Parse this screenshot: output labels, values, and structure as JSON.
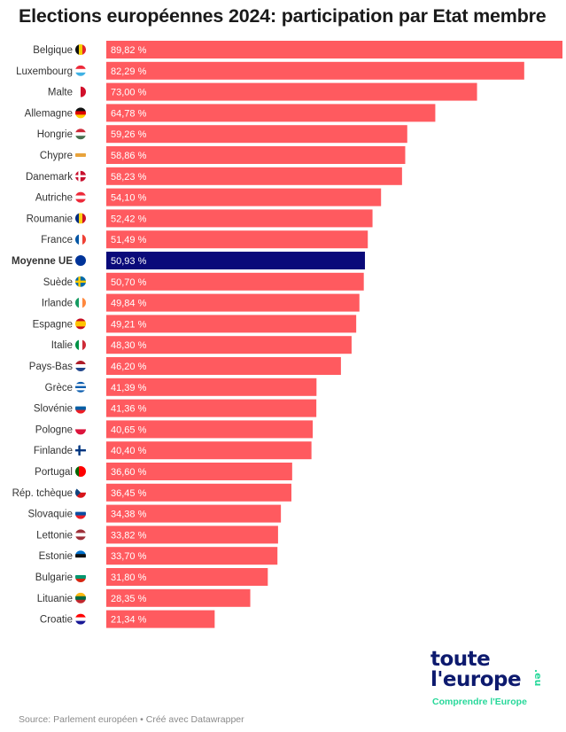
{
  "title": "Elections européennes 2024: participation par Etat membre",
  "source": "Source: Parlement européen • Créé avec Datawrapper",
  "logo": {
    "line1": "toute",
    "line2": "l'europe",
    "suffix": ".eu",
    "tagline": "Comprendre l'Europe"
  },
  "colors": {
    "bar": "#ff5a5f",
    "highlight": "#0a0a7a",
    "logo": "#0d1a6e",
    "logo_accent": "#27d89a"
  },
  "chart_data": {
    "type": "bar",
    "orientation": "horizontal",
    "title": "Elections européennes 2024: participation par Etat membre",
    "xlim": [
      0,
      89.82
    ],
    "grid": false,
    "highlight": "Moyenne UE",
    "categories": [
      "Belgique",
      "Luxembourg",
      "Malte",
      "Allemagne",
      "Hongrie",
      "Chypre",
      "Danemark",
      "Autriche",
      "Roumanie",
      "France",
      "Moyenne UE",
      "Suède",
      "Irlande",
      "Espagne",
      "Italie",
      "Pays-Bas",
      "Grèce",
      "Slovénie",
      "Pologne",
      "Finlande",
      "Portugal",
      "Rép. tchèque",
      "Slovaquie",
      "Lettonie",
      "Estonie",
      "Bulgarie",
      "Lituanie",
      "Croatie"
    ],
    "values": [
      89.82,
      82.29,
      73.0,
      64.78,
      59.26,
      58.86,
      58.23,
      54.1,
      52.42,
      51.49,
      50.93,
      50.7,
      49.84,
      49.21,
      48.3,
      46.2,
      41.39,
      41.36,
      40.65,
      40.4,
      36.6,
      36.45,
      34.38,
      33.82,
      33.7,
      31.8,
      28.35,
      21.34
    ],
    "labels": [
      "89,82 %",
      "82,29 %",
      "73,00 %",
      "64,78 %",
      "59,26 %",
      "58,86 %",
      "58,23 %",
      "54,10 %",
      "52,42 %",
      "51,49 %",
      "50,93 %",
      "50,70 %",
      "49,84 %",
      "49,21 %",
      "48,30 %",
      "46,20 %",
      "41,39 %",
      "41,36 %",
      "40,65 %",
      "40,40 %",
      "36,60 %",
      "36,45 %",
      "34,38 %",
      "33,82 %",
      "33,70 %",
      "31,80 %",
      "28,35 %",
      "21,34 %"
    ],
    "flags": [
      {
        "icon": "flag-belgium-icon",
        "dir": "v",
        "c": [
          "#111",
          "#f5d000",
          "#e3262c"
        ]
      },
      {
        "icon": "flag-luxembourg-icon",
        "dir": "h",
        "c": [
          "#ed2939",
          "#fff",
          "#3fb1e4"
        ]
      },
      {
        "icon": "flag-malta-icon",
        "dir": "v",
        "c": [
          "#fff",
          "#d1102b"
        ]
      },
      {
        "icon": "flag-germany-icon",
        "dir": "h",
        "c": [
          "#111",
          "#dd0000",
          "#ffce00"
        ]
      },
      {
        "icon": "flag-hungary-icon",
        "dir": "h",
        "c": [
          "#ce2939",
          "#fff",
          "#477050"
        ]
      },
      {
        "icon": "flag-cyprus-icon",
        "dir": "h",
        "c": [
          "#fff",
          "#e8a33b",
          "#fff"
        ]
      },
      {
        "icon": "flag-denmark-icon",
        "dir": "cross",
        "c": [
          "#c8102e",
          "#fff"
        ]
      },
      {
        "icon": "flag-austria-icon",
        "dir": "h",
        "c": [
          "#ed2939",
          "#fff",
          "#ed2939"
        ]
      },
      {
        "icon": "flag-romania-icon",
        "dir": "v",
        "c": [
          "#002b7f",
          "#fcd116",
          "#ce1126"
        ]
      },
      {
        "icon": "flag-france-icon",
        "dir": "v",
        "c": [
          "#0055a4",
          "#fff",
          "#ef4135"
        ]
      },
      {
        "icon": "flag-eu-icon",
        "dir": "h",
        "c": [
          "#003399"
        ]
      },
      {
        "icon": "flag-sweden-icon",
        "dir": "cross",
        "c": [
          "#006aa7",
          "#fecc00"
        ]
      },
      {
        "icon": "flag-ireland-icon",
        "dir": "v",
        "c": [
          "#169b62",
          "#fff",
          "#ff883e"
        ]
      },
      {
        "icon": "flag-spain-icon",
        "dir": "h",
        "c": [
          "#c60b1e",
          "#ffc400",
          "#ffc400",
          "#c60b1e"
        ]
      },
      {
        "icon": "flag-italy-icon",
        "dir": "v",
        "c": [
          "#009246",
          "#fff",
          "#ce2b37"
        ]
      },
      {
        "icon": "flag-netherlands-icon",
        "dir": "h",
        "c": [
          "#ae1c28",
          "#fff",
          "#21468b"
        ]
      },
      {
        "icon": "flag-greece-icon",
        "dir": "h",
        "c": [
          "#0d5eaf",
          "#fff",
          "#0d5eaf",
          "#fff",
          "#0d5eaf"
        ]
      },
      {
        "icon": "flag-slovenia-icon",
        "dir": "h",
        "c": [
          "#fff",
          "#005da4",
          "#ed1c24"
        ]
      },
      {
        "icon": "flag-poland-icon",
        "dir": "h",
        "c": [
          "#fff",
          "#dc143c"
        ]
      },
      {
        "icon": "flag-finland-icon",
        "dir": "cross",
        "c": [
          "#fff",
          "#003580"
        ]
      },
      {
        "icon": "flag-portugal-icon",
        "dir": "v",
        "c": [
          "#006600",
          "#ff0000",
          "#ff0000"
        ]
      },
      {
        "icon": "flag-czech-icon",
        "dir": "h",
        "c": [
          "#fff",
          "#d7141a"
        ]
      },
      {
        "icon": "flag-slovakia-icon",
        "dir": "h",
        "c": [
          "#fff",
          "#0b4ea2",
          "#ee1c25"
        ]
      },
      {
        "icon": "flag-latvia-icon",
        "dir": "h",
        "c": [
          "#9e3039",
          "#fff",
          "#9e3039"
        ]
      },
      {
        "icon": "flag-estonia-icon",
        "dir": "h",
        "c": [
          "#0072ce",
          "#111",
          "#fff"
        ]
      },
      {
        "icon": "flag-bulgaria-icon",
        "dir": "h",
        "c": [
          "#fff",
          "#00966e",
          "#d62612"
        ]
      },
      {
        "icon": "flag-lithuania-icon",
        "dir": "h",
        "c": [
          "#fdb913",
          "#006a44",
          "#c1272d"
        ]
      },
      {
        "icon": "flag-croatia-icon",
        "dir": "h",
        "c": [
          "#ff0000",
          "#fff",
          "#171796"
        ]
      }
    ]
  }
}
